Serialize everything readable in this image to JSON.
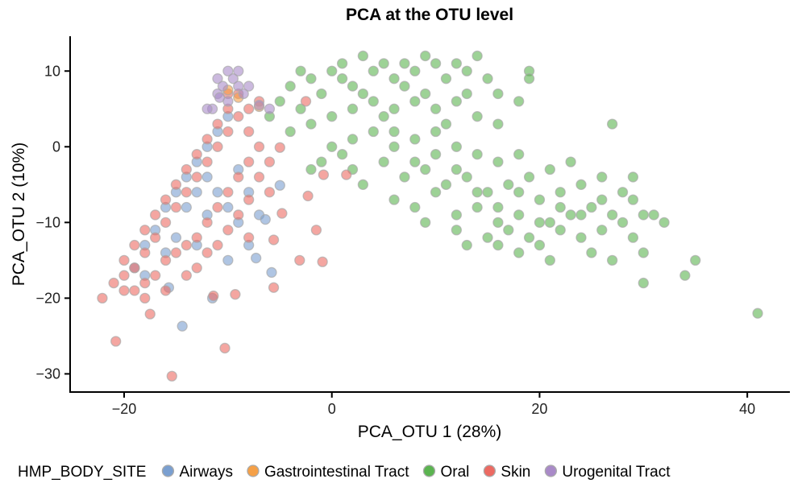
{
  "chart_data": {
    "type": "scatter",
    "title": "PCA at the OTU level",
    "xlabel": "PCA_OTU 1 (28%)",
    "ylabel": "PCA_OTU 2 (10%)",
    "xlim": [
      -25.2,
      44.1
    ],
    "ylim": [
      -32.4,
      14.6
    ],
    "xticks": [
      -20,
      0,
      20,
      40
    ],
    "yticks": [
      -30,
      -20,
      -10,
      0,
      10
    ],
    "grid": false,
    "legend": {
      "title": "HMP_BODY_SITE",
      "placement": "bottom"
    },
    "series": [
      {
        "name": "Oral",
        "color": "#5bb450",
        "points": [
          [
            -6,
            4
          ],
          [
            -5,
            6
          ],
          [
            -4,
            8
          ],
          [
            -3,
            5
          ],
          [
            -2,
            9
          ],
          [
            -1,
            7
          ],
          [
            0,
            10
          ],
          [
            1,
            11
          ],
          [
            2,
            8
          ],
          [
            3,
            12
          ],
          [
            4,
            10
          ],
          [
            5,
            11
          ],
          [
            6,
            9
          ],
          [
            7,
            11
          ],
          [
            8,
            10
          ],
          [
            9,
            12
          ],
          [
            10,
            11
          ],
          [
            11,
            9
          ],
          [
            12,
            11
          ],
          [
            13,
            10
          ],
          [
            14,
            12
          ],
          [
            15,
            9
          ],
          [
            16,
            7
          ],
          [
            -4,
            2
          ],
          [
            -2,
            3
          ],
          [
            0,
            4
          ],
          [
            2,
            5
          ],
          [
            4,
            6
          ],
          [
            6,
            5
          ],
          [
            8,
            6
          ],
          [
            10,
            5
          ],
          [
            12,
            6
          ],
          [
            14,
            4
          ],
          [
            16,
            3
          ],
          [
            0,
            0
          ],
          [
            2,
            1
          ],
          [
            4,
            2
          ],
          [
            6,
            0
          ],
          [
            8,
            1
          ],
          [
            10,
            2
          ],
          [
            12,
            0
          ],
          [
            14,
            -1
          ],
          [
            16,
            -2
          ],
          [
            18,
            -1
          ],
          [
            -1,
            -2
          ],
          [
            2,
            -3
          ],
          [
            5,
            -2
          ],
          [
            7,
            -4
          ],
          [
            9,
            -3
          ],
          [
            11,
            -5
          ],
          [
            13,
            -4
          ],
          [
            15,
            -6
          ],
          [
            17,
            -5
          ],
          [
            19,
            -4
          ],
          [
            21,
            -3
          ],
          [
            23,
            -2
          ],
          [
            6,
            -7
          ],
          [
            8,
            -8
          ],
          [
            10,
            -6
          ],
          [
            12,
            -9
          ],
          [
            14,
            -8
          ],
          [
            16,
            -10
          ],
          [
            18,
            -9
          ],
          [
            20,
            -7
          ],
          [
            22,
            -6
          ],
          [
            24,
            -5
          ],
          [
            26,
            -4
          ],
          [
            28,
            -6
          ],
          [
            12,
            -11
          ],
          [
            15,
            -12
          ],
          [
            17,
            -11
          ],
          [
            19,
            -12
          ],
          [
            21,
            -10
          ],
          [
            23,
            -9
          ],
          [
            25,
            -8
          ],
          [
            27,
            -9
          ],
          [
            29,
            -7
          ],
          [
            20,
            -13
          ],
          [
            22,
            -11
          ],
          [
            24,
            -12
          ],
          [
            26,
            -11
          ],
          [
            28,
            -10
          ],
          [
            30,
            -9
          ],
          [
            16,
            -13
          ],
          [
            25,
            -14
          ],
          [
            27,
            -15
          ],
          [
            29,
            -12
          ],
          [
            31,
            -9
          ],
          [
            32,
            -10
          ],
          [
            35,
            -15
          ],
          [
            34,
            -17
          ],
          [
            30,
            -18
          ],
          [
            41,
            -22
          ],
          [
            19,
            10
          ],
          [
            19,
            9
          ],
          [
            18,
            6
          ],
          [
            27,
            3
          ],
          [
            29,
            -4
          ],
          [
            3,
            -5
          ],
          [
            -2,
            -3
          ],
          [
            1,
            -1
          ],
          [
            9,
            -10
          ],
          [
            13,
            -13
          ],
          [
            18,
            -14
          ],
          [
            21,
            -15
          ],
          [
            30,
            -14
          ],
          [
            3,
            7
          ],
          [
            5,
            4
          ],
          [
            7,
            8
          ],
          [
            9,
            7
          ],
          [
            11,
            3
          ],
          [
            13,
            7
          ],
          [
            -3,
            10
          ],
          [
            1,
            9
          ],
          [
            6,
            2
          ],
          [
            8,
            -2
          ],
          [
            10,
            -1
          ],
          [
            12,
            -3
          ],
          [
            14,
            -6
          ],
          [
            16,
            -8
          ],
          [
            18,
            -6
          ],
          [
            20,
            -10
          ],
          [
            22,
            -8
          ],
          [
            24,
            -9
          ],
          [
            26,
            -7
          ]
        ]
      },
      {
        "name": "Airways",
        "color": "#7a9fd0",
        "points": [
          [
            -19,
            -16
          ],
          [
            -18,
            -13
          ],
          [
            -17,
            -11
          ],
          [
            -16,
            -8
          ],
          [
            -15,
            -6
          ],
          [
            -14,
            -4
          ],
          [
            -13,
            -2
          ],
          [
            -12,
            0
          ],
          [
            -11,
            2
          ],
          [
            -10,
            4
          ],
          [
            -14,
            -8
          ],
          [
            -13,
            -6
          ],
          [
            -12,
            -4
          ],
          [
            -11,
            -6
          ],
          [
            -10,
            -8
          ],
          [
            -9,
            -10
          ],
          [
            -8,
            -6
          ],
          [
            -12,
            -9
          ],
          [
            -15,
            -12
          ],
          [
            -16,
            -14
          ],
          [
            -9,
            -3
          ],
          [
            -8,
            -13
          ],
          [
            -7,
            -9
          ],
          [
            -5,
            -5.1
          ],
          [
            -6.4,
            -9.6
          ],
          [
            -7.3,
            -14.7
          ],
          [
            -5.8,
            -16.6
          ],
          [
            -15.7,
            -18.6
          ],
          [
            -11.5,
            -20
          ],
          [
            -14.4,
            -23.7
          ],
          [
            -13,
            -13
          ],
          [
            -10,
            -15
          ],
          [
            -18,
            -17
          ]
        ]
      },
      {
        "name": "Skin",
        "color": "#ec6a62",
        "points": [
          [
            -21,
            -18
          ],
          [
            -20,
            -17
          ],
          [
            -20,
            -15
          ],
          [
            -19,
            -16
          ],
          [
            -19,
            -13
          ],
          [
            -18,
            -14
          ],
          [
            -18,
            -11
          ],
          [
            -17,
            -12
          ],
          [
            -17,
            -9
          ],
          [
            -16,
            -10
          ],
          [
            -16,
            -7
          ],
          [
            -15,
            -8
          ],
          [
            -15,
            -5
          ],
          [
            -14,
            -6
          ],
          [
            -14,
            -3
          ],
          [
            -13,
            -4
          ],
          [
            -13,
            -1
          ],
          [
            -12,
            -2
          ],
          [
            -12,
            1
          ],
          [
            -11,
            0
          ],
          [
            -11,
            3
          ],
          [
            -10,
            2
          ],
          [
            -10,
            5
          ],
          [
            -9,
            4
          ],
          [
            -9,
            7
          ],
          [
            -8,
            2
          ],
          [
            -8,
            -2
          ],
          [
            -9,
            -4
          ],
          [
            -10,
            -6
          ],
          [
            -11,
            -8
          ],
          [
            -12,
            -10
          ],
          [
            -13,
            -12
          ],
          [
            -14,
            -13
          ],
          [
            -15,
            -14
          ],
          [
            -16,
            -15
          ],
          [
            -17,
            -17
          ],
          [
            -18,
            -18
          ],
          [
            -19,
            -19
          ],
          [
            -20,
            -19
          ],
          [
            -7,
            0
          ],
          [
            -7,
            -4
          ],
          [
            -8,
            -7
          ],
          [
            -9,
            -9
          ],
          [
            -10,
            -11
          ],
          [
            -12,
            -14
          ],
          [
            -13,
            -16
          ],
          [
            -16,
            -19
          ],
          [
            -18,
            -20
          ],
          [
            -6,
            -2
          ],
          [
            -6,
            -6
          ],
          [
            -8,
            -12
          ],
          [
            -11,
            -13
          ],
          [
            -14,
            -17
          ],
          [
            -4.8,
            -8.8
          ],
          [
            -5.6,
            -12.3
          ],
          [
            -0.8,
            -3.7
          ],
          [
            -2.3,
            -6.5
          ],
          [
            -1.5,
            -11
          ],
          [
            -0.9,
            -15.2
          ],
          [
            -3.1,
            -15
          ],
          [
            -5.6,
            -18.6
          ],
          [
            -9.3,
            -19.5
          ],
          [
            -11.4,
            -19.7
          ],
          [
            -17.5,
            -22.1
          ],
          [
            -22.1,
            -20
          ],
          [
            -20.8,
            -25.7
          ],
          [
            -15.4,
            -30.3
          ],
          [
            -10.3,
            -26.6
          ],
          [
            1.4,
            -3.7
          ],
          [
            -2.5,
            6
          ],
          [
            -5,
            -0.1
          ],
          [
            -7,
            6
          ],
          [
            -8,
            5
          ],
          [
            -10,
            7
          ]
        ]
      },
      {
        "name": "Gastrointestinal Tract",
        "color": "#f5a047",
        "points": [
          [
            -9,
            6.5
          ],
          [
            -7,
            5.3
          ],
          [
            -10,
            7.5
          ]
        ]
      },
      {
        "name": "Urogenital Tract",
        "color": "#a98ac8",
        "points": [
          [
            -11,
            9
          ],
          [
            -10,
            10
          ],
          [
            -10.5,
            8
          ],
          [
            -9.5,
            9
          ],
          [
            -9,
            8
          ],
          [
            -11,
            7
          ],
          [
            -10,
            6
          ],
          [
            -11.5,
            5
          ],
          [
            -12,
            5
          ],
          [
            -8.5,
            7
          ],
          [
            -8,
            8
          ],
          [
            -7,
            5.5
          ],
          [
            -6,
            5
          ],
          [
            -9,
            10
          ],
          [
            -10.8,
            6.5
          ]
        ]
      }
    ],
    "legend_order": [
      "Airways",
      "Gastrointestinal Tract",
      "Oral",
      "Skin",
      "Urogenital Tract"
    ]
  }
}
